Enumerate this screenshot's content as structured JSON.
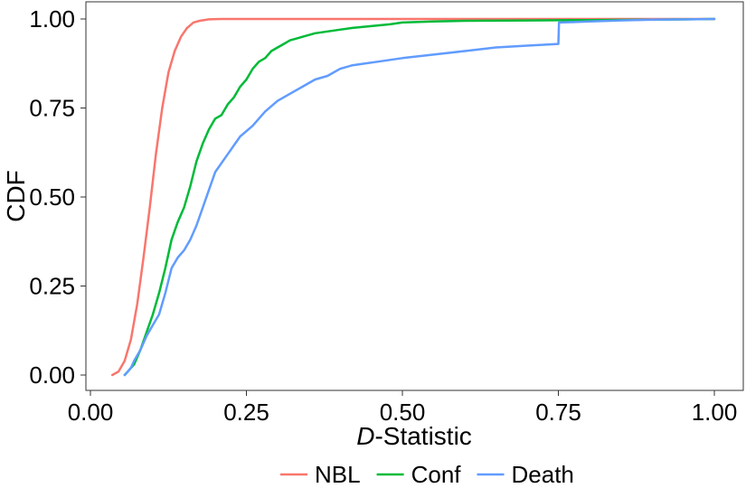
{
  "chart_data": {
    "type": "line",
    "title": "",
    "xlabel_italic": "D",
    "xlabel_rest": "-Statistic",
    "ylabel": "CDF",
    "xlim": [
      0.0,
      1.0
    ],
    "ylim": [
      0.0,
      1.0
    ],
    "x_ticks": [
      0.0,
      0.25,
      0.5,
      0.75,
      1.0
    ],
    "x_tick_labels": [
      "0.00",
      "0.25",
      "0.50",
      "0.75",
      "1.00"
    ],
    "y_ticks": [
      0.0,
      0.25,
      0.5,
      0.75,
      1.0
    ],
    "y_tick_labels": [
      "0.00",
      "0.25",
      "0.50",
      "0.75",
      "1.00"
    ],
    "grid": false,
    "legend_position": "bottom",
    "series": [
      {
        "name": "NBL",
        "color": "#F8766D",
        "x": [
          0.035,
          0.045,
          0.055,
          0.065,
          0.075,
          0.085,
          0.095,
          0.105,
          0.115,
          0.125,
          0.135,
          0.145,
          0.155,
          0.165,
          0.175,
          0.19,
          0.21,
          0.25,
          0.5,
          0.75,
          1.0
        ],
        "y": [
          0.0,
          0.01,
          0.04,
          0.1,
          0.2,
          0.33,
          0.47,
          0.62,
          0.75,
          0.85,
          0.91,
          0.95,
          0.975,
          0.99,
          0.995,
          0.999,
          1.0,
          1.0,
          1.0,
          1.0,
          1.0
        ]
      },
      {
        "name": "Conf",
        "color": "#00BA38",
        "x": [
          0.055,
          0.06,
          0.07,
          0.08,
          0.09,
          0.1,
          0.11,
          0.12,
          0.13,
          0.14,
          0.15,
          0.16,
          0.17,
          0.18,
          0.19,
          0.2,
          0.21,
          0.22,
          0.23,
          0.24,
          0.25,
          0.26,
          0.27,
          0.28,
          0.29,
          0.3,
          0.31,
          0.32,
          0.33,
          0.34,
          0.36,
          0.38,
          0.4,
          0.42,
          0.45,
          0.48,
          0.5,
          0.55,
          0.6,
          0.7,
          0.8,
          0.9,
          1.0
        ],
        "y": [
          0.0,
          0.01,
          0.03,
          0.07,
          0.12,
          0.17,
          0.23,
          0.3,
          0.38,
          0.43,
          0.47,
          0.53,
          0.6,
          0.65,
          0.69,
          0.72,
          0.73,
          0.76,
          0.78,
          0.81,
          0.83,
          0.86,
          0.88,
          0.89,
          0.91,
          0.92,
          0.93,
          0.94,
          0.945,
          0.95,
          0.96,
          0.965,
          0.97,
          0.975,
          0.98,
          0.985,
          0.99,
          0.993,
          0.995,
          0.996,
          0.997,
          0.998,
          1.0
        ]
      },
      {
        "name": "Death",
        "color": "#619CFF",
        "x": [
          0.055,
          0.06,
          0.065,
          0.07,
          0.08,
          0.09,
          0.1,
          0.11,
          0.12,
          0.13,
          0.14,
          0.15,
          0.16,
          0.17,
          0.18,
          0.19,
          0.2,
          0.22,
          0.24,
          0.26,
          0.28,
          0.3,
          0.32,
          0.34,
          0.36,
          0.38,
          0.4,
          0.42,
          0.44,
          0.46,
          0.48,
          0.5,
          0.55,
          0.6,
          0.65,
          0.7,
          0.75,
          0.751,
          0.8,
          0.85,
          0.9,
          1.0
        ],
        "y": [
          0.0,
          0.01,
          0.02,
          0.04,
          0.07,
          0.11,
          0.14,
          0.17,
          0.23,
          0.3,
          0.33,
          0.35,
          0.38,
          0.42,
          0.47,
          0.52,
          0.57,
          0.62,
          0.67,
          0.7,
          0.74,
          0.77,
          0.79,
          0.81,
          0.83,
          0.84,
          0.86,
          0.87,
          0.875,
          0.88,
          0.885,
          0.89,
          0.9,
          0.91,
          0.92,
          0.925,
          0.93,
          0.99,
          0.993,
          0.996,
          0.998,
          1.0
        ]
      }
    ]
  }
}
